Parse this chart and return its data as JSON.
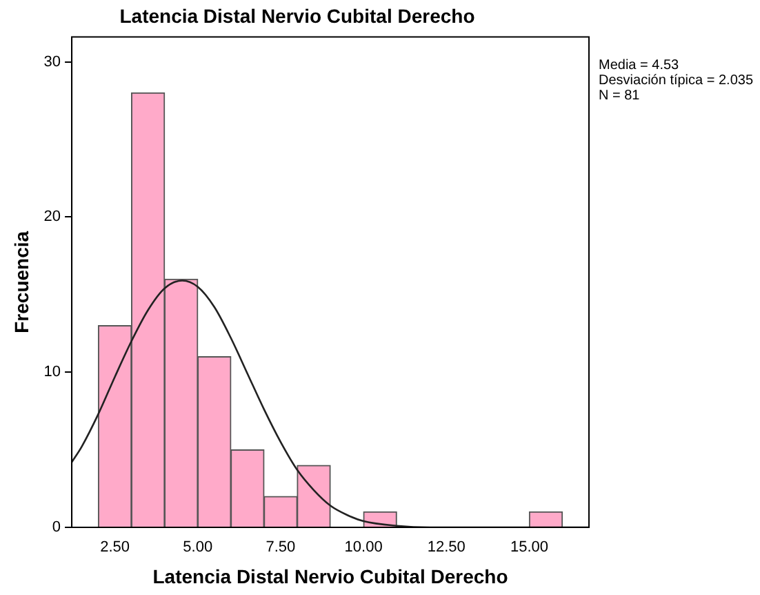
{
  "chart_data": {
    "type": "histogram",
    "title": "Latencia Distal Nervio Cubital Derecho",
    "xlabel": "Latencia Distal Nervio Cubital Derecho",
    "ylabel": "Frecuencia",
    "bins": [
      2,
      3,
      4,
      5,
      6,
      7,
      8,
      9,
      10,
      11,
      12,
      13,
      14,
      15,
      16
    ],
    "values": [
      13,
      28,
      16,
      11,
      5,
      2,
      4,
      0,
      1,
      0,
      0,
      0,
      0,
      1
    ],
    "color": "#ffaac9",
    "series": [
      {
        "type": "line",
        "color": "#222222",
        "x": [
          1.2,
          1.5,
          2,
          2.5,
          3,
          3.5,
          4,
          4.53,
          5,
          5.5,
          6,
          6.5,
          7,
          7.5,
          8,
          8.5,
          9,
          9.5,
          10,
          11,
          12,
          13,
          16.8
        ],
        "values": [
          4.2,
          5.2,
          7.3,
          9.7,
          12,
          14,
          15.4,
          15.9,
          15.5,
          14.2,
          12.2,
          9.9,
          7.6,
          5.5,
          3.7,
          2.4,
          1.4,
          0.8,
          0.4,
          0.1,
          0,
          0,
          0
        ]
      }
    ],
    "xlim": [
      1.2,
      16.8
    ],
    "ylim": [
      0,
      31.6
    ],
    "xticks": [
      {
        "value": 2.5,
        "label": "2.50"
      },
      {
        "value": 5,
        "label": "5.00"
      },
      {
        "value": 7.5,
        "label": "7.50"
      },
      {
        "value": 10,
        "label": "10.00"
      },
      {
        "value": 12.5,
        "label": "12.50"
      },
      {
        "value": 15,
        "label": "15.00"
      }
    ],
    "yticks": [
      0,
      10,
      20,
      30
    ],
    "grid": false,
    "legend": false,
    "marker": "none",
    "annotations": [
      "Media = 4.53",
      "Desviación típica = 2.035",
      "N = 81"
    ]
  }
}
